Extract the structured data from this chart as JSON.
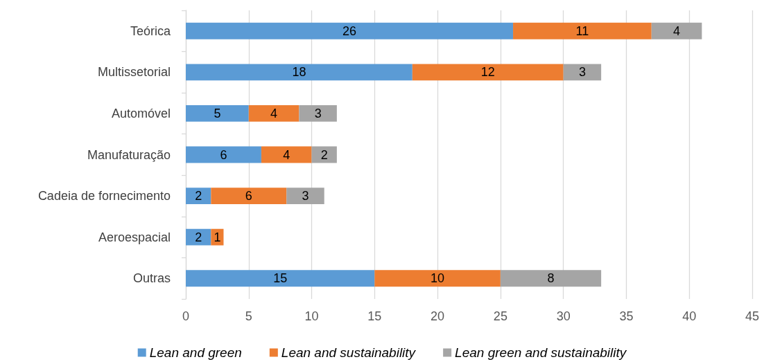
{
  "chart_data": {
    "type": "bar",
    "orientation": "horizontal",
    "stacked": true,
    "categories": [
      "Teórica",
      "Multissetorial",
      "Automóvel",
      "Manufaturação",
      "Cadeia de fornecimento",
      "Aeroespacial",
      "Outras"
    ],
    "series": [
      {
        "name": "Lean and green",
        "color": "#5b9bd5",
        "values": [
          26,
          18,
          5,
          6,
          2,
          2,
          15
        ]
      },
      {
        "name": "Lean and sustainability",
        "color": "#ed7d31",
        "values": [
          11,
          12,
          4,
          4,
          6,
          1,
          10
        ]
      },
      {
        "name": "Lean green and sustainability",
        "color": "#a5a5a5",
        "values": [
          4,
          3,
          3,
          2,
          3,
          null,
          8
        ]
      }
    ],
    "xlim": [
      0,
      45
    ],
    "xticks": [
      0,
      5,
      10,
      15,
      20,
      25,
      30,
      35,
      40,
      45
    ],
    "grid": "x",
    "legend": "bottom",
    "data_labels": true
  }
}
